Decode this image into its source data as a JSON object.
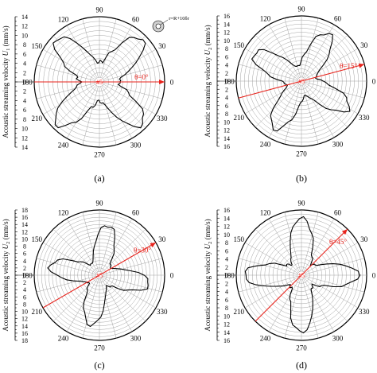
{
  "figure": {
    "radius_unit": "(mm/s)",
    "inset_note": "r=R+10δr"
  },
  "chart_data": [
    {
      "type": "polar-line",
      "panel_label": "(a)",
      "ylabel": "Acoustic streaming velocity U1 (mm/s)",
      "ylabel_prefix": "Acoustic streaming velocity ",
      "ylabel_var": "U",
      "ylabel_sub": "1",
      "ylabel_suffix": " (mm/s)",
      "rlim": [
        0,
        14
      ],
      "r_ticks": [
        "0",
        "2",
        "4",
        "6",
        "8",
        "10",
        "12",
        "14"
      ],
      "angle_ticks": [
        "0",
        "30",
        "60",
        "90",
        "120",
        "150",
        "180",
        "210",
        "240",
        "270",
        "300",
        "330"
      ],
      "center_label": "#5",
      "angle_annotation": "θ=0°",
      "arrow_deg": 0,
      "inset": true,
      "lobes": [
        45,
        135,
        225,
        315
      ],
      "peak": 13.0,
      "base": 4.0,
      "grid": true
    },
    {
      "type": "polar-line",
      "panel_label": "(b)",
      "ylabel": "Acoustic streaming velocity U2 (mm/s)",
      "ylabel_prefix": "Acoustic streaming velocity ",
      "ylabel_var": "U",
      "ylabel_sub": "2",
      "ylabel_suffix": " (mm/s)",
      "rlim": [
        0,
        16
      ],
      "r_ticks": [
        "0",
        "2",
        "4",
        "6",
        "8",
        "10",
        "12",
        "14",
        "16"
      ],
      "angle_ticks": [
        "0",
        "30",
        "60",
        "90",
        "120",
        "150",
        "180",
        "210",
        "240",
        "270",
        "300",
        "330"
      ],
      "center_label": "#5",
      "angle_annotation": "θ=15°",
      "arrow_deg": 15,
      "inset": false,
      "lobes": [
        60,
        150,
        240,
        330
      ],
      "peak": 13.5,
      "base": 3.5,
      "grid": true
    },
    {
      "type": "polar-line",
      "panel_label": "(c)",
      "ylabel": "Acoustic streaming velocity U2 (mm/s)",
      "ylabel_prefix": "Acoustic streaming velocity ",
      "ylabel_var": "U",
      "ylabel_sub": "2",
      "ylabel_suffix": " (mm/s)",
      "rlim": [
        0,
        18
      ],
      "r_ticks": [
        "0",
        "2",
        "4",
        "6",
        "8",
        "10",
        "12",
        "14",
        "16",
        "18"
      ],
      "angle_ticks": [
        "0",
        "30",
        "60",
        "90",
        "120",
        "150",
        "180",
        "210",
        "240",
        "270",
        "300",
        "330"
      ],
      "center_label": "#5",
      "angle_annotation": "θ=30°",
      "arrow_deg": 30,
      "inset": false,
      "lobes": [
        80,
        170,
        260,
        350
      ],
      "peak": 14.0,
      "base": 3.5,
      "grid": true
    },
    {
      "type": "polar-line",
      "panel_label": "(d)",
      "ylabel": "Acoustic streaming velocity U2 (mm/s)",
      "ylabel_prefix": "Acoustic streaming velocity ",
      "ylabel_var": "U",
      "ylabel_sub": "2",
      "ylabel_suffix": " (mm/s)",
      "rlim": [
        0,
        16
      ],
      "r_ticks": [
        "0",
        "2",
        "4",
        "6",
        "8",
        "10",
        "12",
        "14",
        "16"
      ],
      "angle_ticks": [
        "0",
        "30",
        "60",
        "90",
        "120",
        "150",
        "180",
        "210",
        "240",
        "270",
        "300",
        "330"
      ],
      "center_label": "#5",
      "angle_annotation": "θ=45°",
      "arrow_deg": 45,
      "inset": false,
      "lobes": [
        0,
        90,
        180,
        270
      ],
      "peak": 14.0,
      "base": 3.5,
      "grid": true
    }
  ]
}
